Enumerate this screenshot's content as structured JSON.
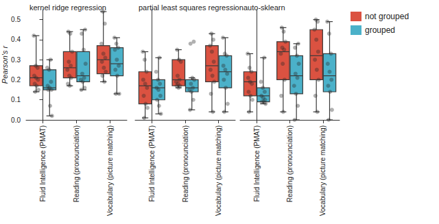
{
  "chart_data": [
    {
      "type": "boxplot",
      "title": "kernel ridge regression",
      "ylabel": "Pearson's r",
      "categories": [
        "Fluid Intelligence (PMAT)",
        "Reading (pronounciation)",
        "Vocabulary (picture matching)"
      ],
      "ylim": [
        0,
        0.55
      ],
      "yticks": [
        {
          "value": 0,
          "label": "0.0"
        },
        0.1,
        0.2,
        0.3,
        0.4,
        0.5
      ],
      "grid": false,
      "tick_labels": true,
      "series": [
        {
          "name": "not grouped",
          "color": "#db5241",
          "values": [
            [
              0.14,
              0.17,
              0.21,
              0.27,
              0.42
            ],
            [
              0.17,
              0.21,
              0.26,
              0.34,
              0.44
            ],
            [
              0.19,
              0.23,
              0.3,
              0.37,
              0.54
            ]
          ],
          "points": [
            [
              0.42,
              0.27,
              0.26,
              0.22,
              0.21,
              0.2,
              0.18,
              0.17,
              0.15,
              0.14
            ],
            [
              0.44,
              0.43,
              0.34,
              0.29,
              0.27,
              0.25,
              0.22,
              0.21,
              0.18,
              0.17
            ],
            [
              0.54,
              0.48,
              0.38,
              0.33,
              0.31,
              0.29,
              0.26,
              0.24,
              0.22,
              0.19
            ]
          ]
        },
        {
          "name": "grouped",
          "color": "#4bb1c9",
          "values": [
            [
              0.02,
              0.15,
              0.16,
              0.25,
              0.3
            ],
            [
              0.15,
              0.19,
              0.22,
              0.34,
              0.45
            ],
            [
              0.13,
              0.22,
              0.28,
              0.36,
              0.41
            ]
          ],
          "points": [
            [
              0.3,
              0.26,
              0.25,
              0.19,
              0.17,
              0.16,
              0.15,
              0.15,
              0.07,
              0.02
            ],
            [
              0.45,
              0.43,
              0.35,
              0.28,
              0.23,
              0.21,
              0.2,
              0.19,
              0.16,
              0.15
            ],
            [
              0.41,
              0.38,
              0.36,
              0.35,
              0.3,
              0.27,
              0.25,
              0.22,
              0.13,
              0.13
            ]
          ]
        }
      ]
    },
    {
      "type": "boxplot",
      "title": "partial least squares regression",
      "categories": [
        "Fluid Intelligence (PMAT)",
        "Reading (pronounciation)",
        "Vocabulary (picture matching)"
      ],
      "ylim": [
        0,
        0.55
      ],
      "yticks": [
        {
          "value": 0,
          "label": "0.0"
        },
        0.1,
        0.2,
        0.3,
        0.4,
        0.5
      ],
      "grid": false,
      "tick_labels": "x",
      "series": [
        {
          "name": "not grouped",
          "color": "#db5241",
          "values": [
            [
              0.01,
              0.08,
              0.17,
              0.24,
              0.34
            ],
            [
              0.16,
              0.17,
              0.2,
              0.3,
              0.35
            ],
            [
              0.04,
              0.19,
              0.27,
              0.37,
              0.43
            ]
          ],
          "points": [
            [
              0.34,
              0.3,
              0.24,
              0.2,
              0.18,
              0.16,
              0.12,
              0.08,
              0.06,
              0.01
            ],
            [
              0.35,
              0.3,
              0.29,
              0.22,
              0.2,
              0.19,
              0.18,
              0.17,
              0.17,
              0.16
            ],
            [
              0.43,
              0.4,
              0.37,
              0.34,
              0.29,
              0.25,
              0.22,
              0.19,
              0.13,
              0.04
            ]
          ]
        },
        {
          "name": "grouped",
          "color": "#4bb1c9",
          "values": [
            [
              0.03,
              0.1,
              0.16,
              0.2,
              0.31
            ],
            [
              0.05,
              0.14,
              0.16,
              0.2,
              0.21
            ],
            [
              0.04,
              0.16,
              0.24,
              0.32,
              0.41
            ]
          ],
          "points": [
            [
              0.31,
              0.24,
              0.2,
              0.18,
              0.16,
              0.15,
              0.12,
              0.1,
              0.07,
              0.03
            ],
            [
              0.39,
              0.38,
              0.21,
              0.2,
              0.18,
              0.16,
              0.15,
              0.14,
              0.1,
              0.05
            ],
            [
              0.41,
              0.33,
              0.32,
              0.27,
              0.25,
              0.23,
              0.2,
              0.16,
              0.08,
              0.04
            ]
          ]
        }
      ]
    },
    {
      "type": "boxplot",
      "title": "auto-sklearn",
      "categories": [
        "Fluid Intelligence (PMAT)",
        "Reading (pronounciation)",
        "Vocabulary (picture matching)"
      ],
      "ylim": [
        0,
        0.55
      ],
      "yticks": [
        {
          "value": 0,
          "label": "0.0"
        },
        0.1,
        0.2,
        0.3,
        0.4,
        0.5
      ],
      "grid": false,
      "tick_labels": "x",
      "legend": "right",
      "series": [
        {
          "name": "not grouped",
          "color": "#db5241",
          "values": [
            [
              0.04,
              0.12,
              0.19,
              0.24,
              0.33
            ],
            [
              0.04,
              0.2,
              0.34,
              0.39,
              0.46
            ],
            [
              0.04,
              0.2,
              0.32,
              0.45,
              0.5
            ]
          ],
          "points": [
            [
              0.33,
              0.26,
              0.24,
              0.21,
              0.19,
              0.18,
              0.14,
              0.12,
              0.1,
              0.04
            ],
            [
              0.46,
              0.44,
              0.39,
              0.36,
              0.35,
              0.33,
              0.28,
              0.2,
              0.12,
              0.04
            ],
            [
              0.5,
              0.49,
              0.45,
              0.4,
              0.34,
              0.3,
              0.25,
              0.2,
              0.12,
              0.04
            ]
          ]
        },
        {
          "name": "grouped",
          "color": "#4bb1c9",
          "values": [
            [
              0.08,
              0.09,
              0.12,
              0.16,
              0.31
            ],
            [
              0.0,
              0.13,
              0.22,
              0.32,
              0.38
            ],
            [
              0.0,
              0.14,
              0.22,
              0.33,
              0.49
            ]
          ],
          "points": [
            [
              0.31,
              0.19,
              0.16,
              0.14,
              0.12,
              0.11,
              0.1,
              0.09,
              0.09,
              0.08
            ],
            [
              0.38,
              0.36,
              0.32,
              0.28,
              0.23,
              0.21,
              0.17,
              0.13,
              0.07,
              0.0
            ],
            [
              0.49,
              0.43,
              0.33,
              0.28,
              0.24,
              0.2,
              0.17,
              0.14,
              0.05,
              0.0
            ]
          ]
        }
      ]
    }
  ]
}
